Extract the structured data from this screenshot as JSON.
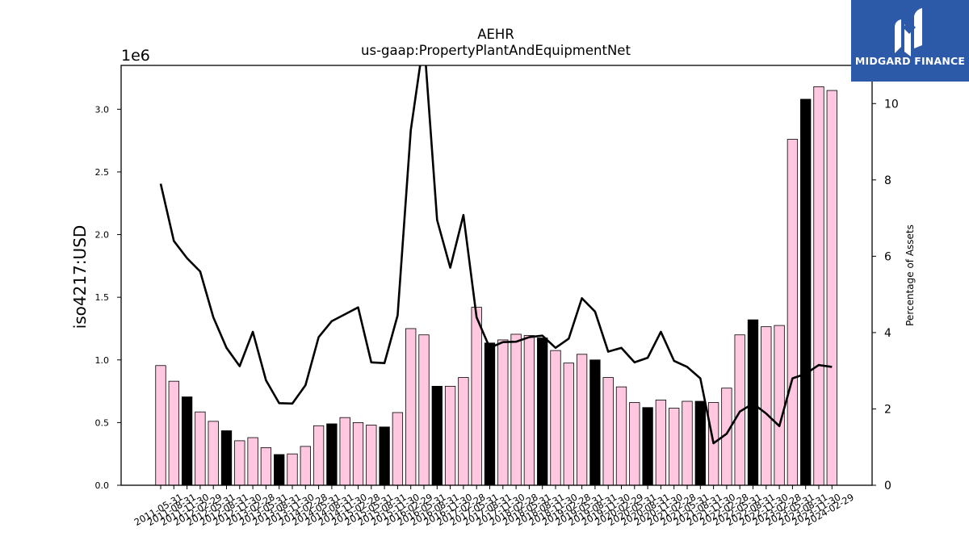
{
  "chart_data": {
    "type": "bar",
    "title": "AEHR",
    "subtitle": "us-gaap:PropertyPlantAndEquipmentNet",
    "ylabel": "iso4217:USD",
    "y_offset_label": "1e6",
    "y2label": "Percentage of Assets",
    "ylim": [
      0,
      3350000
    ],
    "y2lim": [
      0,
      11
    ],
    "yticks": [
      "0.0",
      "0.5",
      "1.0",
      "1.5",
      "2.0",
      "2.5",
      "3.0"
    ],
    "y2ticks": [
      "0",
      "2",
      "4",
      "6",
      "8",
      "10"
    ],
    "grid": false,
    "colors": {
      "bar_default": "#ffc8e0",
      "bar_highlight": "#000000",
      "line": "#000000"
    },
    "categories": [
      "2011-05-31",
      "2011-08-31",
      "2011-11-30",
      "2012-02-29",
      "2012-05-31",
      "2012-08-31",
      "2012-11-30",
      "2013-02-28",
      "2013-05-31",
      "2013-08-31",
      "2013-11-30",
      "2014-02-28",
      "2014-05-31",
      "2014-08-31",
      "2014-11-30",
      "2015-02-28",
      "2015-05-31",
      "2015-08-31",
      "2015-11-30",
      "2016-02-29",
      "2016-05-31",
      "2016-08-31",
      "2016-11-30",
      "2017-02-28",
      "2017-05-31",
      "2017-08-31",
      "2017-11-30",
      "2018-02-28",
      "2018-05-31",
      "2018-08-31",
      "2018-11-30",
      "2019-02-28",
      "2019-05-31",
      "2019-08-31",
      "2019-11-30",
      "2020-02-29",
      "2020-05-31",
      "2020-08-31",
      "2020-11-30",
      "2021-02-28",
      "2021-05-31",
      "2021-08-31",
      "2021-11-30",
      "2022-02-28",
      "2022-05-31",
      "2022-08-31",
      "2022-11-30",
      "2023-02-28",
      "2023-05-31",
      "2023-08-31",
      "2023-11-30",
      "2024-02-29"
    ],
    "series": [
      {
        "kind": "bar",
        "values": [
          955000,
          830000,
          705000,
          585000,
          510000,
          435000,
          355000,
          380000,
          300000,
          245000,
          250000,
          310000,
          475000,
          490000,
          540000,
          500000,
          480000,
          465000,
          580000,
          1250000,
          1200000,
          790000,
          790000,
          860000,
          1420000,
          1135000,
          1160000,
          1205000,
          1195000,
          1175000,
          1075000,
          975000,
          1045000,
          1000000,
          860000,
          785000,
          660000,
          620000,
          680000,
          615000,
          670000,
          670000,
          660000,
          775000,
          1200000,
          1320000,
          1265000,
          1275000,
          2760000,
          3080000,
          3180000,
          3150000
        ],
        "highlight_categories": [
          "2011-11-30",
          "2012-08-31",
          "2013-08-31",
          "2014-08-31",
          "2015-08-31",
          "2016-08-31",
          "2017-08-31",
          "2018-08-31",
          "2019-08-31",
          "2020-08-31",
          "2021-08-31",
          "2022-08-31",
          "2023-08-31"
        ]
      },
      {
        "kind": "line",
        "axis": "right",
        "values": [
          7.9,
          6.4,
          5.95,
          5.6,
          4.4,
          3.6,
          3.12,
          4.02,
          2.75,
          2.15,
          2.14,
          2.62,
          3.88,
          4.3,
          4.48,
          4.66,
          3.22,
          3.2,
          4.45,
          9.3,
          11.7,
          6.95,
          5.7,
          7.08,
          4.4,
          3.6,
          3.75,
          3.76,
          3.88,
          3.92,
          3.6,
          3.84,
          4.9,
          4.55,
          3.5,
          3.6,
          3.22,
          3.34,
          4.02,
          3.26,
          3.1,
          2.8,
          1.1,
          1.35,
          1.93,
          2.14,
          1.88,
          1.55,
          2.8,
          2.92,
          3.15,
          3.1
        ]
      }
    ]
  },
  "logo": {
    "text": "MIDGARD FINANCE"
  }
}
